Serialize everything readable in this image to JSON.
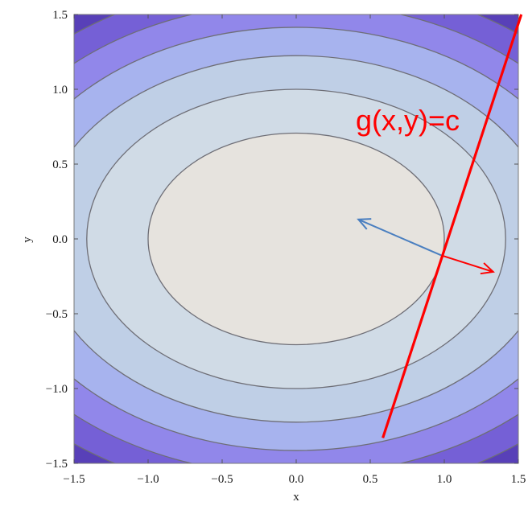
{
  "chart_data": {
    "type": "contour",
    "function": "f(x,y) = x^2 + 2*y^2",
    "xlabel": "x",
    "ylabel": "y",
    "xlim": [
      -1.5,
      1.5
    ],
    "ylim": [
      -1.5,
      1.5
    ],
    "xticks": [
      "-1.5",
      "-1.0",
      "-0.5",
      "0.0",
      "0.5",
      "1.0",
      "1.5"
    ],
    "yticks": [
      "-1.5",
      "-1.0",
      "-0.5",
      "0.0",
      "0.5",
      "1.0",
      "1.5"
    ],
    "contour_levels": [
      1,
      2,
      3,
      4,
      5,
      6
    ],
    "band_colors": [
      "#e6e3de",
      "#d0dbe6",
      "#bfcfe6",
      "#a7b3ee",
      "#9187ea",
      "#7560d6",
      "#5840b8"
    ],
    "contour_line_color": "#6e6e76",
    "constraint": {
      "label": "g(x,y)=c",
      "color": "#ff0000",
      "points": [
        [
          0.585,
          -1.33
        ],
        [
          1.52,
          1.5
        ]
      ]
    },
    "tangent_point": [
      0.98,
      -0.11
    ],
    "gradient_f": {
      "color": "#4a7fc0",
      "from": [
        0.98,
        -0.11
      ],
      "to": [
        0.42,
        0.13
      ]
    },
    "gradient_g": {
      "color": "#ff0000",
      "from": [
        0.98,
        -0.11
      ],
      "to": [
        1.33,
        -0.22
      ]
    }
  }
}
